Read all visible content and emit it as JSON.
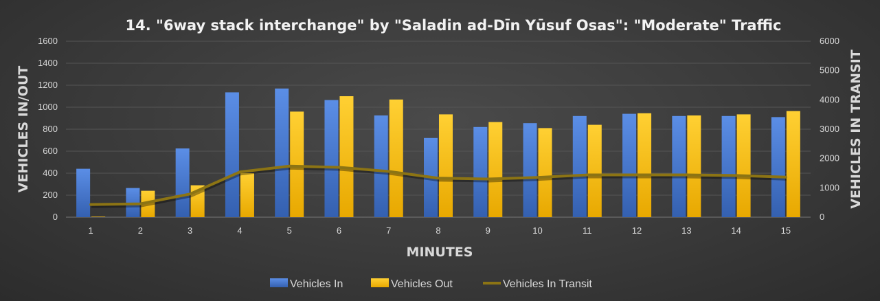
{
  "chart_data": {
    "type": "bar",
    "title": "14. \"6way stack interchange\" by \"Saladin ad-Dīn Yūsuf Osas\": \"Moderate\" Traffic",
    "xlabel": "MINUTES",
    "ylabel": "VEHICLES IN/OUT",
    "y2label": "VEHICLES IN TRANSIT",
    "categories": [
      "1",
      "2",
      "3",
      "4",
      "5",
      "6",
      "7",
      "8",
      "9",
      "10",
      "11",
      "12",
      "13",
      "14",
      "15"
    ],
    "ylim": [
      0,
      1600
    ],
    "y_ticks": [
      "0",
      "200",
      "400",
      "600",
      "800",
      "1000",
      "1200",
      "1400",
      "1600"
    ],
    "y2lim": [
      0,
      6000
    ],
    "y2_ticks": [
      "0",
      "1000",
      "2000",
      "3000",
      "4000",
      "5000",
      "6000"
    ],
    "grid": true,
    "legend_position": "bottom",
    "series": [
      {
        "name": "Vehicles In",
        "kind": "bar",
        "axis": "left",
        "color": "#4472c4",
        "values": [
          440,
          265,
          625,
          1135,
          1170,
          1065,
          925,
          720,
          820,
          855,
          920,
          940,
          920,
          920,
          910
        ]
      },
      {
        "name": "Vehicles Out",
        "kind": "bar",
        "axis": "left",
        "color": "#ffc000",
        "values": [
          5,
          240,
          290,
          400,
          960,
          1100,
          1070,
          935,
          865,
          810,
          840,
          945,
          925,
          935,
          965
        ]
      },
      {
        "name": "Vehicles In Transit",
        "kind": "line",
        "axis": "right",
        "color": "#8c7414",
        "values": [
          430,
          455,
          790,
          1540,
          1740,
          1700,
          1560,
          1330,
          1300,
          1355,
          1440,
          1440,
          1440,
          1420,
          1365
        ]
      }
    ]
  }
}
